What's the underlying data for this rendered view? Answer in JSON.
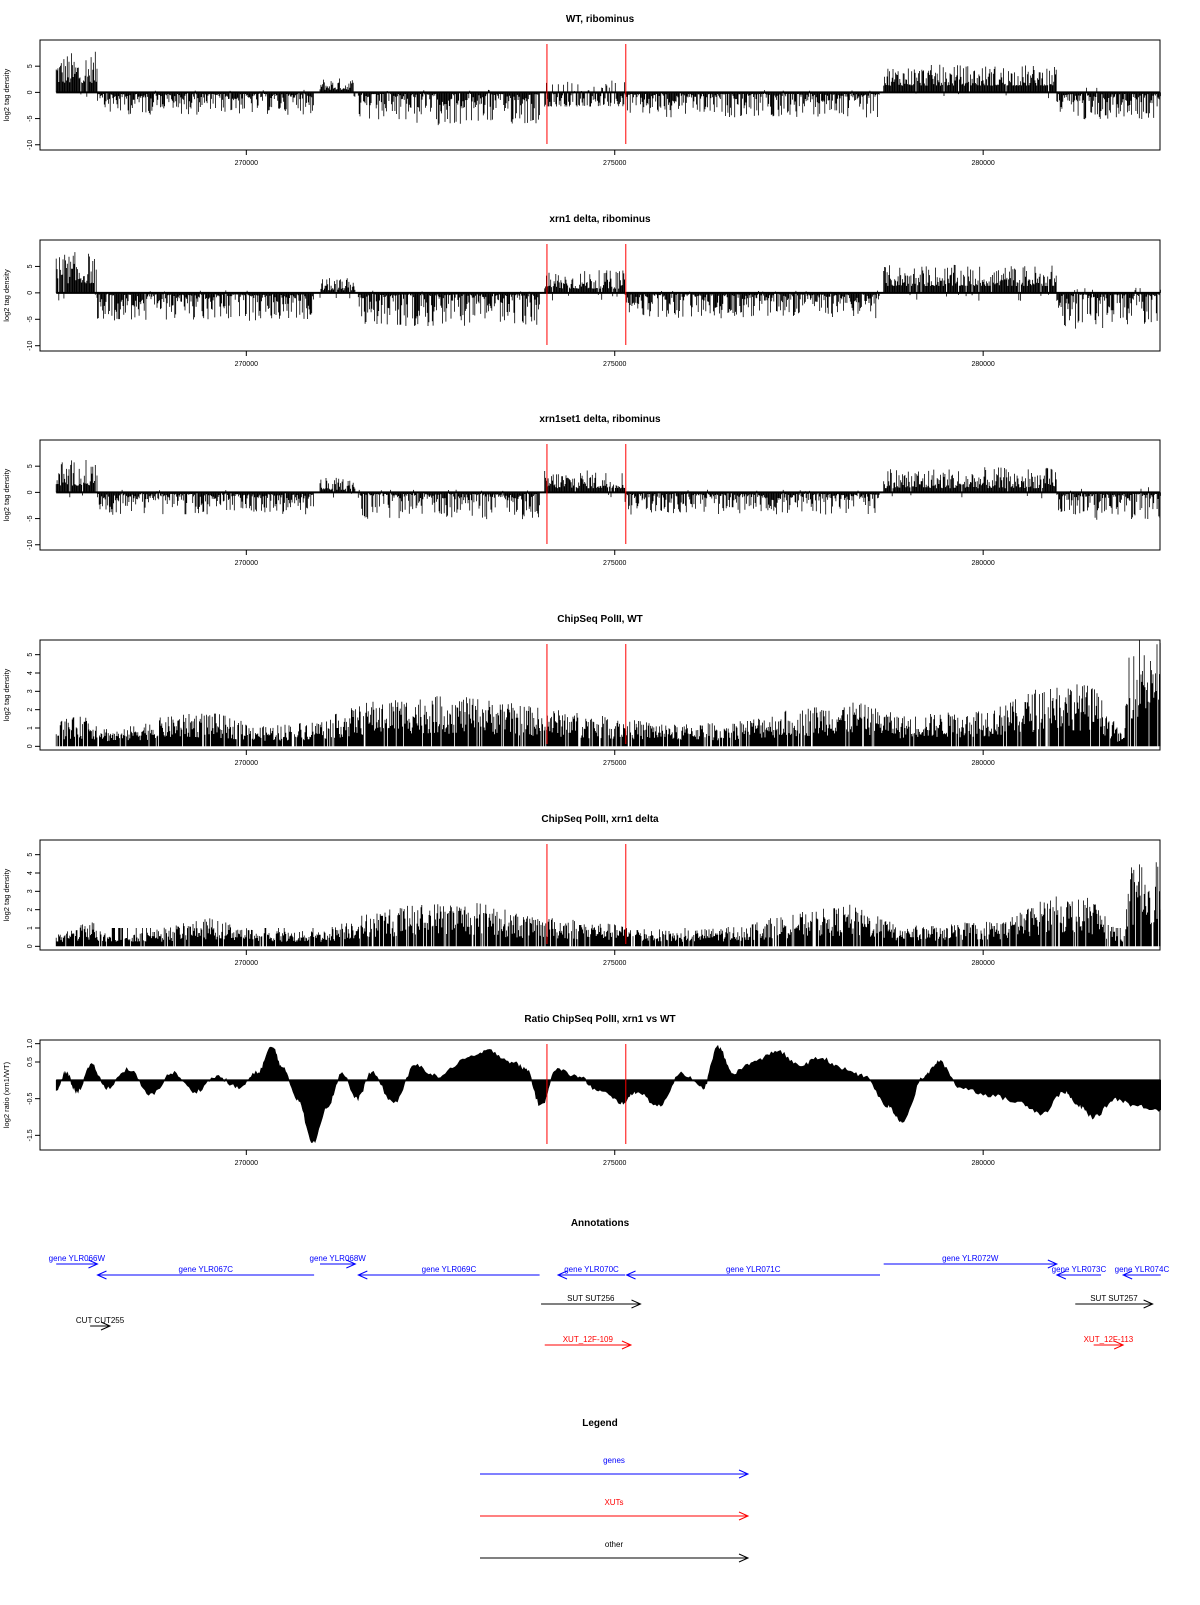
{
  "chart_data": [
    {
      "type": "bar",
      "title": "WT, ribominus",
      "ylabel": "log2 tag density",
      "ylim": [
        -11,
        10
      ],
      "yticks": [
        -10,
        -5,
        0,
        5
      ],
      "xlim": [
        267200,
        282400
      ],
      "xticks": [
        270000,
        275000,
        280000
      ],
      "xtick_labels": [
        "270000",
        "275000",
        "280000"
      ],
      "markers": [
        274080,
        275150
      ],
      "segments": [
        {
          "x": [
            267420,
            267980
          ],
          "y": [
            1.5,
            7.5
          ]
        },
        {
          "x": [
            267980,
            270920
          ],
          "y": [
            -4,
            0.5
          ]
        },
        {
          "x": [
            271000,
            271480
          ],
          "y": [
            0.2,
            2.5
          ]
        },
        {
          "x": [
            271520,
            273980
          ],
          "y": [
            -6,
            0.5
          ]
        },
        {
          "x": [
            274050,
            275140
          ],
          "y": [
            -3,
            2
          ]
        },
        {
          "x": [
            275140,
            278600
          ],
          "y": [
            -4.5,
            0.5
          ]
        },
        {
          "x": [
            278650,
            281000
          ],
          "y": [
            1,
            5
          ]
        },
        {
          "x": [
            281000,
            282410
          ],
          "y": [
            -5,
            1
          ]
        }
      ]
    },
    {
      "type": "bar",
      "title": "xrn1 delta, ribominus",
      "ylabel": "log2 tag density",
      "ylim": [
        -11,
        10
      ],
      "yticks": [
        -10,
        -5,
        0,
        5
      ],
      "xlim": [
        267200,
        282400
      ],
      "xticks": [
        270000,
        275000,
        280000
      ],
      "xtick_labels": [
        "270000",
        "275000",
        "280000"
      ],
      "markers": [
        274080,
        275150
      ],
      "segments": [
        {
          "x": [
            267420,
            267980
          ],
          "y": [
            1.5,
            7.5
          ]
        },
        {
          "x": [
            267980,
            270920
          ],
          "y": [
            -5,
            0.5
          ]
        },
        {
          "x": [
            271000,
            271480
          ],
          "y": [
            0.2,
            2.5
          ]
        },
        {
          "x": [
            271520,
            273980
          ],
          "y": [
            -6,
            0.5
          ]
        },
        {
          "x": [
            274050,
            275140
          ],
          "y": [
            0.5,
            4
          ]
        },
        {
          "x": [
            275140,
            278600
          ],
          "y": [
            -4.5,
            0.5
          ]
        },
        {
          "x": [
            278650,
            281000
          ],
          "y": [
            1,
            5
          ]
        },
        {
          "x": [
            281000,
            282410
          ],
          "y": [
            -6.5,
            1
          ]
        }
      ]
    },
    {
      "type": "bar",
      "title": "xrn1set1 delta, ribominus",
      "ylabel": "log2 tag density",
      "ylim": [
        -11,
        10
      ],
      "yticks": [
        -10,
        -5,
        0,
        5
      ],
      "xlim": [
        267200,
        282400
      ],
      "xticks": [
        270000,
        275000,
        280000
      ],
      "xtick_labels": [
        "270000",
        "275000",
        "280000"
      ],
      "markers": [
        274080,
        275150
      ],
      "segments": [
        {
          "x": [
            267420,
            267980
          ],
          "y": [
            1,
            6
          ]
        },
        {
          "x": [
            267980,
            270920
          ],
          "y": [
            -4,
            0.5
          ]
        },
        {
          "x": [
            271000,
            271480
          ],
          "y": [
            0.2,
            2.5
          ]
        },
        {
          "x": [
            271520,
            273980
          ],
          "y": [
            -5,
            0.5
          ]
        },
        {
          "x": [
            274050,
            275140
          ],
          "y": [
            0.5,
            4
          ]
        },
        {
          "x": [
            275140,
            278600
          ],
          "y": [
            -4,
            0.5
          ]
        },
        {
          "x": [
            278650,
            281000
          ],
          "y": [
            0.5,
            4.5
          ]
        },
        {
          "x": [
            281000,
            282410
          ],
          "y": [
            -5,
            1
          ]
        }
      ]
    },
    {
      "type": "bar",
      "title": "ChipSeq PolII, WT",
      "ylabel": "log2 tag density",
      "ylim": [
        -0.2,
        5.8
      ],
      "yticks": [
        0,
        1,
        2,
        3,
        4,
        5
      ],
      "xlim": [
        267200,
        282400
      ],
      "xticks": [
        270000,
        275000,
        280000
      ],
      "xtick_labels": [
        "270000",
        "275000",
        "280000"
      ],
      "markers": [
        274080,
        275150
      ],
      "profile": [
        [
          267420,
          1.2
        ],
        [
          267800,
          1.4
        ],
        [
          268200,
          0.7
        ],
        [
          268800,
          1.3
        ],
        [
          269500,
          1.6
        ],
        [
          270200,
          0.9
        ],
        [
          271000,
          1.2
        ],
        [
          271700,
          2.1
        ],
        [
          272500,
          2.3
        ],
        [
          273200,
          2.2
        ],
        [
          273900,
          1.8
        ],
        [
          274400,
          1.6
        ],
        [
          275000,
          1.3
        ],
        [
          275800,
          1.0
        ],
        [
          276600,
          1.1
        ],
        [
          277400,
          1.7
        ],
        [
          278200,
          2.1
        ],
        [
          278900,
          1.4
        ],
        [
          279700,
          1.6
        ],
        [
          280300,
          1.9
        ],
        [
          280900,
          3.0
        ],
        [
          281500,
          2.8
        ],
        [
          281900,
          0.4
        ],
        [
          282000,
          5.0
        ],
        [
          282410,
          5.2
        ]
      ]
    },
    {
      "type": "bar",
      "title": "ChipSeq PolII, xrn1 delta",
      "ylabel": "log2 tag density",
      "ylim": [
        -0.2,
        5.8
      ],
      "yticks": [
        0,
        1,
        2,
        3,
        4,
        5
      ],
      "xlim": [
        267200,
        282400
      ],
      "xticks": [
        270000,
        275000,
        280000
      ],
      "xtick_labels": [
        "270000",
        "275000",
        "280000"
      ],
      "markers": [
        274080,
        275150
      ],
      "profile": [
        [
          267420,
          0.5
        ],
        [
          267900,
          1.2
        ],
        [
          268200,
          0.3
        ],
        [
          268800,
          0.8
        ],
        [
          269500,
          1.3
        ],
        [
          270200,
          0.7
        ],
        [
          271000,
          0.7
        ],
        [
          271700,
          1.6
        ],
        [
          272500,
          2.0
        ],
        [
          273200,
          2.0
        ],
        [
          273900,
          1.3
        ],
        [
          274400,
          1.3
        ],
        [
          275000,
          1.0
        ],
        [
          275800,
          0.7
        ],
        [
          276600,
          0.9
        ],
        [
          277400,
          1.5
        ],
        [
          278200,
          1.9
        ],
        [
          278900,
          0.9
        ],
        [
          279700,
          1.1
        ],
        [
          280300,
          1.2
        ],
        [
          280900,
          2.3
        ],
        [
          281500,
          2.2
        ],
        [
          281900,
          0.2
        ],
        [
          282000,
          3.6
        ],
        [
          282410,
          4.1
        ]
      ]
    },
    {
      "type": "area",
      "title": "Ratio ChipSeq PolII, xrn1 vs WT",
      "ylabel": "log2 ratio (xrn1/WT)",
      "ylim": [
        -1.9,
        1.1
      ],
      "yticks": [
        -1.5,
        -0.5,
        0.5,
        1.0
      ],
      "ytick_labels": [
        "-1.5",
        "-0.5",
        "0.5",
        "1.0"
      ],
      "baseline": 0,
      "xlim": [
        267200,
        282400
      ],
      "xticks": [
        270000,
        275000,
        280000
      ],
      "xtick_labels": [
        "270000",
        "275000",
        "280000"
      ],
      "markers": [
        274080,
        275150
      ],
      "points": [
        [
          267420,
          -0.3
        ],
        [
          267550,
          0.2
        ],
        [
          267700,
          -0.3
        ],
        [
          267900,
          0.4
        ],
        [
          268100,
          -0.2
        ],
        [
          268400,
          0.3
        ],
        [
          268700,
          -0.4
        ],
        [
          269000,
          0.2
        ],
        [
          269300,
          -0.3
        ],
        [
          269600,
          0.1
        ],
        [
          269900,
          -0.2
        ],
        [
          270150,
          0.2
        ],
        [
          270350,
          0.9
        ],
        [
          270500,
          0.3
        ],
        [
          270700,
          -0.5
        ],
        [
          270900,
          -1.7
        ],
        [
          271100,
          -0.7
        ],
        [
          271300,
          0.2
        ],
        [
          271500,
          -0.5
        ],
        [
          271700,
          0.2
        ],
        [
          272000,
          -0.6
        ],
        [
          272300,
          0.4
        ],
        [
          272600,
          0.1
        ],
        [
          273000,
          0.6
        ],
        [
          273300,
          0.8
        ],
        [
          273600,
          0.5
        ],
        [
          273800,
          0.3
        ],
        [
          274000,
          -0.7
        ],
        [
          274200,
          0.3
        ],
        [
          274500,
          0.1
        ],
        [
          274800,
          -0.3
        ],
        [
          275100,
          -0.6
        ],
        [
          275300,
          -0.3
        ],
        [
          275600,
          -0.7
        ],
        [
          275900,
          0.2
        ],
        [
          276200,
          -0.2
        ],
        [
          276400,
          0.9
        ],
        [
          276600,
          0.2
        ],
        [
          276900,
          0.5
        ],
        [
          277200,
          0.8
        ],
        [
          277500,
          0.4
        ],
        [
          277800,
          0.6
        ],
        [
          278100,
          0.3
        ],
        [
          278400,
          0.1
        ],
        [
          278700,
          -0.7
        ],
        [
          278900,
          -1.1
        ],
        [
          279200,
          0.1
        ],
        [
          279400,
          0.5
        ],
        [
          279700,
          -0.2
        ],
        [
          280100,
          -0.4
        ],
        [
          280500,
          -0.6
        ],
        [
          280800,
          -0.9
        ],
        [
          281100,
          -0.3
        ],
        [
          281300,
          -0.7
        ],
        [
          281500,
          -1.0
        ],
        [
          281800,
          -0.5
        ],
        [
          282100,
          -0.7
        ],
        [
          282410,
          -0.8
        ]
      ]
    }
  ],
  "annotations_title": "Annotations",
  "annotations": [
    {
      "label": "gene YLR066W",
      "start": 267420,
      "end": 267980,
      "dir": 1,
      "color": "#0000ff",
      "row": 0
    },
    {
      "label": "gene YLR067C",
      "start": 267980,
      "end": 270920,
      "dir": -1,
      "color": "#0000ff",
      "row": 1
    },
    {
      "label": "gene YLR068W",
      "start": 271000,
      "end": 271480,
      "dir": 1,
      "color": "#0000ff",
      "row": 0
    },
    {
      "label": "gene YLR069C",
      "start": 271520,
      "end": 273980,
      "dir": -1,
      "color": "#0000ff",
      "row": 1
    },
    {
      "label": "gene YLR070C",
      "start": 274230,
      "end": 275140,
      "dir": -1,
      "color": "#0000ff",
      "row": 1
    },
    {
      "label": "gene YLR071C",
      "start": 275160,
      "end": 278600,
      "dir": -1,
      "color": "#0000ff",
      "row": 1
    },
    {
      "label": "gene YLR072W",
      "start": 278650,
      "end": 281000,
      "dir": 1,
      "color": "#0000ff",
      "row": 0
    },
    {
      "label": "gene YLR073C",
      "start": 281000,
      "end": 281600,
      "dir": -1,
      "color": "#0000ff",
      "row": 1
    },
    {
      "label": "gene YLR074C",
      "start": 281900,
      "end": 282410,
      "dir": -1,
      "color": "#0000ff",
      "row": 1
    },
    {
      "label": "SUT SUT256",
      "start": 274000,
      "end": 275350,
      "dir": 1,
      "color": "#000000",
      "row": 2
    },
    {
      "label": "SUT SUT257",
      "start": 281250,
      "end": 282300,
      "dir": 1,
      "color": "#000000",
      "row": 2
    },
    {
      "label": "CUT CUT255",
      "start": 267880,
      "end": 268150,
      "dir": 1,
      "color": "#000000",
      "row": 3
    },
    {
      "label": "XUT_12F-109",
      "start": 274050,
      "end": 275220,
      "dir": 1,
      "color": "#ff0000",
      "row": 4
    },
    {
      "label": "XUT_12F-113",
      "start": 281500,
      "end": 281900,
      "dir": 1,
      "color": "#ff0000",
      "row": 4
    }
  ],
  "legend_title": "Legend",
  "legend": [
    {
      "label": "genes",
      "color": "#0000ff"
    },
    {
      "label": "XUTs",
      "color": "#ff0000"
    },
    {
      "label": "other",
      "color": "#000000"
    }
  ]
}
